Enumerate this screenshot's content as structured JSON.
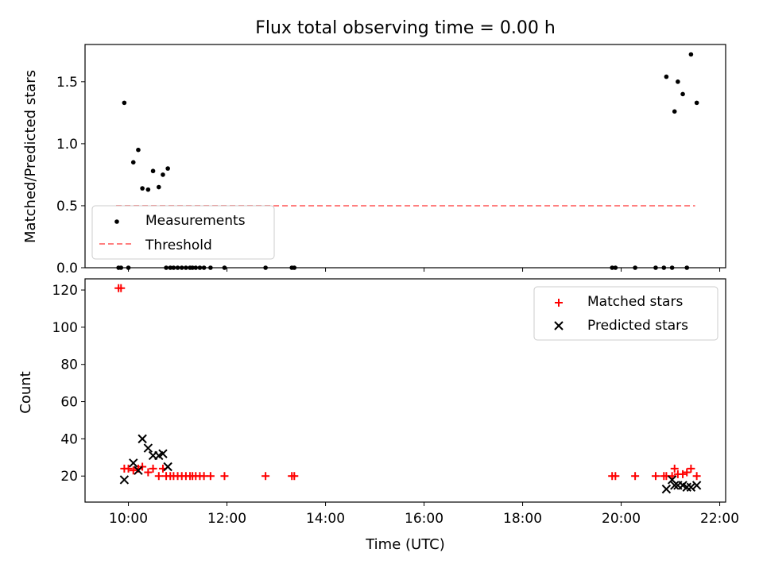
{
  "chart_data": [
    {
      "type": "scatter",
      "title": "Flux total observing time = 0.00 h",
      "ylabel": "Matched/Predicted stars",
      "xlim_hours": [
        9.12,
        22.12
      ],
      "ylim": [
        0,
        1.8
      ],
      "yticks": [
        0.0,
        0.5,
        1.0,
        1.5
      ],
      "ytick_labels": [
        "0.0",
        "0.5",
        "1.0",
        "1.5"
      ],
      "legend_position": "lower-left",
      "colors": {
        "measurements": "#000000",
        "threshold": "#ff7f7f"
      },
      "series": [
        {
          "name": "Measurements",
          "marker": "dot",
          "points": [
            [
              "09:48",
              0.0
            ],
            [
              "09:51",
              0.0
            ],
            [
              "09:55",
              1.33
            ],
            [
              "10:00",
              0.0
            ],
            [
              "10:06",
              0.85
            ],
            [
              "10:12",
              0.95
            ],
            [
              "10:17",
              0.64
            ],
            [
              "10:24",
              0.63
            ],
            [
              "10:30",
              0.78
            ],
            [
              "10:37",
              0.65
            ],
            [
              "10:42",
              0.75
            ],
            [
              "10:48",
              0.8
            ],
            [
              "10:46",
              0.0
            ],
            [
              "10:51",
              0.0
            ],
            [
              "10:55",
              0.0
            ],
            [
              "11:00",
              0.0
            ],
            [
              "11:05",
              0.0
            ],
            [
              "11:10",
              0.0
            ],
            [
              "11:15",
              0.0
            ],
            [
              "11:18",
              0.0
            ],
            [
              "11:22",
              0.0
            ],
            [
              "11:27",
              0.0
            ],
            [
              "11:32",
              0.0
            ],
            [
              "11:40",
              0.0
            ],
            [
              "11:57",
              0.0
            ],
            [
              "12:47",
              0.0
            ],
            [
              "13:19",
              0.0
            ],
            [
              "13:22",
              0.0
            ],
            [
              "19:49",
              0.0
            ],
            [
              "19:53",
              0.0
            ],
            [
              "20:17",
              0.0
            ],
            [
              "20:42",
              0.0
            ],
            [
              "20:52",
              0.0
            ],
            [
              "20:55",
              1.54
            ],
            [
              "21:02",
              0.0
            ],
            [
              "21:05",
              1.26
            ],
            [
              "21:09",
              1.5
            ],
            [
              "21:15",
              1.4
            ],
            [
              "21:20",
              0.0
            ],
            [
              "21:25",
              1.72
            ],
            [
              "21:32",
              1.33
            ]
          ]
        },
        {
          "name": "Threshold",
          "style": "dashed-line",
          "points": [
            [
              "09:45",
              0.5
            ],
            [
              "21:30",
              0.5
            ]
          ]
        }
      ]
    },
    {
      "type": "scatter",
      "xlabel": "Time (UTC)",
      "ylabel": "Count",
      "xlim_hours": [
        9.12,
        22.12
      ],
      "ylim": [
        6,
        126
      ],
      "yticks": [
        20,
        40,
        60,
        80,
        100,
        120
      ],
      "ytick_labels": [
        "20",
        "40",
        "60",
        "80",
        "100",
        "120"
      ],
      "xticks_hours": [
        10,
        12,
        14,
        16,
        18,
        20,
        22
      ],
      "xtick_labels": [
        "10:00",
        "12:00",
        "14:00",
        "16:00",
        "18:00",
        "20:00",
        "22:00"
      ],
      "legend_position": "top-right",
      "colors": {
        "matched": "#ff0000",
        "predicted": "#000000"
      },
      "series": [
        {
          "name": "Matched stars",
          "marker": "plus",
          "points": [
            [
              "09:48",
              121
            ],
            [
              "09:51",
              121
            ],
            [
              "09:55",
              24
            ],
            [
              "10:00",
              24
            ],
            [
              "10:06",
              23
            ],
            [
              "10:12",
              24
            ],
            [
              "10:17",
              25
            ],
            [
              "10:24",
              22
            ],
            [
              "10:30",
              24
            ],
            [
              "10:37",
              20
            ],
            [
              "10:42",
              24
            ],
            [
              "10:46",
              20
            ],
            [
              "10:51",
              20
            ],
            [
              "10:55",
              20
            ],
            [
              "11:00",
              20
            ],
            [
              "11:05",
              20
            ],
            [
              "11:10",
              20
            ],
            [
              "11:15",
              20
            ],
            [
              "11:18",
              20
            ],
            [
              "11:22",
              20
            ],
            [
              "11:27",
              20
            ],
            [
              "11:32",
              20
            ],
            [
              "11:40",
              20
            ],
            [
              "11:57",
              20
            ],
            [
              "12:47",
              20
            ],
            [
              "13:19",
              20
            ],
            [
              "13:22",
              20
            ],
            [
              "19:49",
              20
            ],
            [
              "19:53",
              20
            ],
            [
              "20:17",
              20
            ],
            [
              "20:42",
              20
            ],
            [
              "20:52",
              20
            ],
            [
              "20:55",
              20
            ],
            [
              "21:02",
              20
            ],
            [
              "21:05",
              24
            ],
            [
              "21:09",
              21
            ],
            [
              "21:15",
              21
            ],
            [
              "21:20",
              22
            ],
            [
              "21:25",
              24
            ],
            [
              "21:32",
              20
            ]
          ]
        },
        {
          "name": "Predicted stars",
          "marker": "x",
          "points": [
            [
              "09:55",
              18
            ],
            [
              "10:06",
              27
            ],
            [
              "10:12",
              23
            ],
            [
              "10:17",
              40
            ],
            [
              "10:24",
              35
            ],
            [
              "10:30",
              31
            ],
            [
              "10:37",
              31
            ],
            [
              "10:42",
              32
            ],
            [
              "10:48",
              25
            ],
            [
              "20:55",
              13
            ],
            [
              "21:02",
              18
            ],
            [
              "21:05",
              15
            ],
            [
              "21:09",
              15
            ],
            [
              "21:15",
              15
            ],
            [
              "21:20",
              14
            ],
            [
              "21:25",
              14
            ],
            [
              "21:32",
              15
            ]
          ]
        }
      ]
    }
  ]
}
